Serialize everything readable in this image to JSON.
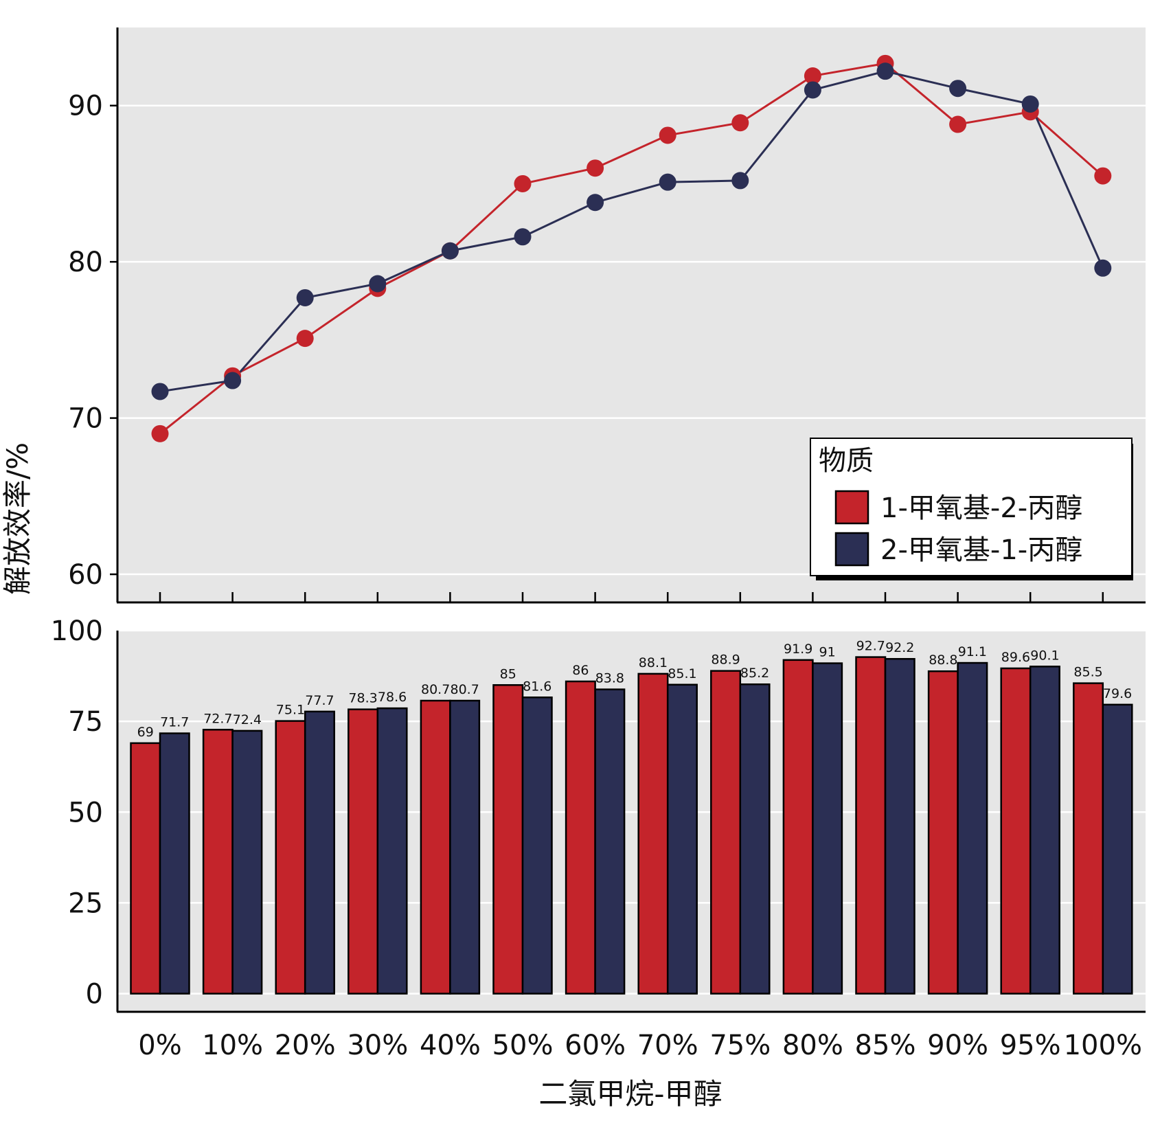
{
  "chart_data": [
    {
      "type": "line",
      "panel": "top",
      "categories": [
        "0%",
        "10%",
        "20%",
        "30%",
        "40%",
        "50%",
        "60%",
        "70%",
        "75%",
        "80%",
        "85%",
        "90%",
        "95%",
        "100%"
      ],
      "series": [
        {
          "name": "1-甲氧基-2-丙醇",
          "color": "#c4242b",
          "values": [
            69,
            72.7,
            75.1,
            78.3,
            80.7,
            85,
            86,
            88.1,
            88.9,
            91.9,
            92.7,
            88.8,
            89.6,
            85.5
          ]
        },
        {
          "name": "2-甲氧基-1-丙醇",
          "color": "#2b2f54",
          "values": [
            71.7,
            72.4,
            77.7,
            78.6,
            80.7,
            81.6,
            83.8,
            85.1,
            85.2,
            91,
            92.2,
            91.1,
            90.1,
            79.6
          ]
        }
      ],
      "yticks": [
        60,
        70,
        80,
        90
      ],
      "ylim": [
        58.2,
        95
      ],
      "grid": true
    },
    {
      "type": "bar",
      "panel": "bottom",
      "categories": [
        "0%",
        "10%",
        "20%",
        "30%",
        "40%",
        "50%",
        "60%",
        "70%",
        "75%",
        "80%",
        "85%",
        "90%",
        "95%",
        "100%"
      ],
      "series": [
        {
          "name": "1-甲氧基-2-丙醇",
          "color": "#c4242b",
          "values": [
            69,
            72.7,
            75.1,
            78.3,
            80.7,
            85,
            86,
            88.1,
            88.9,
            91.9,
            92.7,
            88.8,
            89.6,
            85.5
          ]
        },
        {
          "name": "2-甲氧基-1-丙醇",
          "color": "#2b2f54",
          "values": [
            71.7,
            72.4,
            77.7,
            78.6,
            80.7,
            81.6,
            83.8,
            85.1,
            85.2,
            91,
            92.2,
            91.1,
            90.1,
            79.6
          ]
        }
      ],
      "data_labels": [
        [
          "69",
          "72.7",
          "75.1",
          "78.3",
          "80.7",
          "85",
          "86",
          "88.1",
          "88.9",
          "91.9",
          "92.7",
          "88.8",
          "89.6",
          "85.5"
        ],
        [
          "71.7",
          "72.4",
          "77.7",
          "78.6",
          "80.7",
          "81.6",
          "83.8",
          "85.1",
          "85.2",
          "91",
          "92.2",
          "91.1",
          "90.1",
          "79.6"
        ]
      ],
      "yticks": [
        0,
        25,
        50,
        75,
        100
      ],
      "ylim": [
        -5,
        100
      ],
      "grid": true
    }
  ],
  "xlabel": "二氯甲烷-甲醇",
  "ylabel": "解放效率/%",
  "legend": {
    "title": "物质",
    "position": "right",
    "items": [
      "1-甲氧基-2-丙醇",
      "2-甲氧基-1-丙醇"
    ]
  }
}
